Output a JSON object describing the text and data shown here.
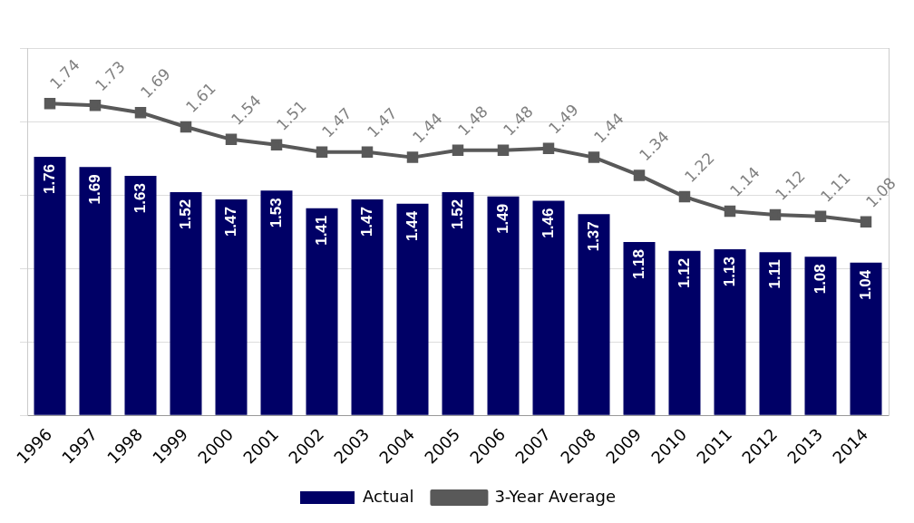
{
  "chart_data": {
    "type": "bar",
    "categories": [
      "1996",
      "1997",
      "1998",
      "1999",
      "2000",
      "2001",
      "2002",
      "2003",
      "2004",
      "2005",
      "2006",
      "2007",
      "2008",
      "2009",
      "2010",
      "2011",
      "2012",
      "2013",
      "2014"
    ],
    "series": [
      {
        "name": "Actual",
        "color": "#000066",
        "values": [
          1.76,
          1.69,
          1.63,
          1.52,
          1.47,
          1.53,
          1.41,
          1.47,
          1.44,
          1.52,
          1.49,
          1.46,
          1.37,
          1.18,
          1.12,
          1.13,
          1.11,
          1.08,
          1.04
        ]
      },
      {
        "name": "3-Year Average",
        "type": "line",
        "axis": "y2",
        "color": "#595959",
        "marker": "square",
        "values": [
          1.74,
          1.73,
          1.69,
          1.61,
          1.54,
          1.51,
          1.47,
          1.47,
          1.44,
          1.48,
          1.48,
          1.49,
          1.44,
          1.34,
          1.22,
          1.14,
          1.12,
          1.11,
          1.08
        ]
      }
    ],
    "ylim": [
      0,
      2.5
    ],
    "y2lim": [
      0,
      2.05
    ],
    "tick_labels": "x",
    "grid": "y",
    "legend": "bottom",
    "data_labels": true
  }
}
